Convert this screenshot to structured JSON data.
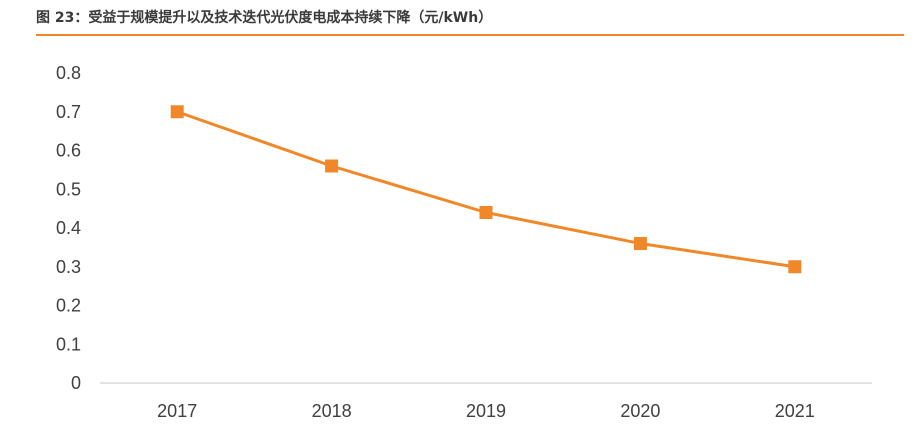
{
  "figure": {
    "title": "图 23：受益于规模提升以及技术迭代光伏度电成本持续下降（元/kWh）",
    "accent_color": "#F0882A"
  },
  "chart_data": {
    "type": "line",
    "categories": [
      "2017",
      "2018",
      "2019",
      "2020",
      "2021"
    ],
    "series": [
      {
        "values": [
          0.7,
          0.56,
          0.44,
          0.36,
          0.3
        ],
        "color": "#F0882A",
        "marker": "square"
      }
    ],
    "y_ticks": [
      "0",
      "0.1",
      "0.2",
      "0.3",
      "0.4",
      "0.5",
      "0.6",
      "0.7",
      "0.8"
    ],
    "ylim": [
      0,
      0.8
    ],
    "grid": false,
    "legend": "none"
  }
}
